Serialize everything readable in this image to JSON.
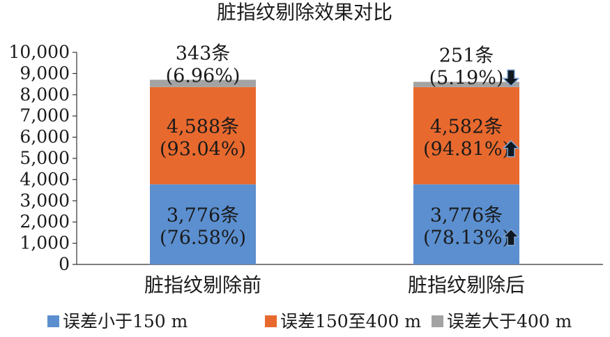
{
  "chart_data": {
    "type": "bar",
    "stacked": true,
    "title": "脏指纹剔除效果对比",
    "xlabel": "",
    "ylabel": "",
    "ylim": [
      0,
      10000
    ],
    "yticks": [
      "0",
      "1,000",
      "2,000",
      "3,000",
      "4,000",
      "5,000",
      "6,000",
      "7,000",
      "8,000",
      "9,000",
      "10,000"
    ],
    "categories": [
      "脏指纹剔除前",
      "脏指纹剔除后"
    ],
    "grid": false,
    "legend_position": "bottom",
    "series": [
      {
        "name": "误差小于150 m",
        "color": "#5b8fd0",
        "values": [
          3776,
          3776
        ],
        "labels": [
          {
            "count": "3,776条",
            "pct": "(76.58%)",
            "arrow": ""
          },
          {
            "count": "3,776条",
            "pct": "(78.13%)",
            "arrow": "up"
          }
        ]
      },
      {
        "name": "误差150至400 m",
        "color": "#e8692e",
        "values": [
          4588,
          4582
        ],
        "labels": [
          {
            "count": "4,588条",
            "pct": "(93.04%)",
            "arrow": ""
          },
          {
            "count": "4,582条",
            "pct": "(94.81%)",
            "arrow": "up"
          }
        ]
      },
      {
        "name": "误差大于400 m",
        "color": "#a3a3a3",
        "values": [
          343,
          251
        ],
        "labels": [
          {
            "count": "343条",
            "pct": "(6.96%)",
            "arrow": ""
          },
          {
            "count": "251条",
            "pct": "(5.19%)",
            "arrow": "down"
          }
        ]
      }
    ]
  }
}
